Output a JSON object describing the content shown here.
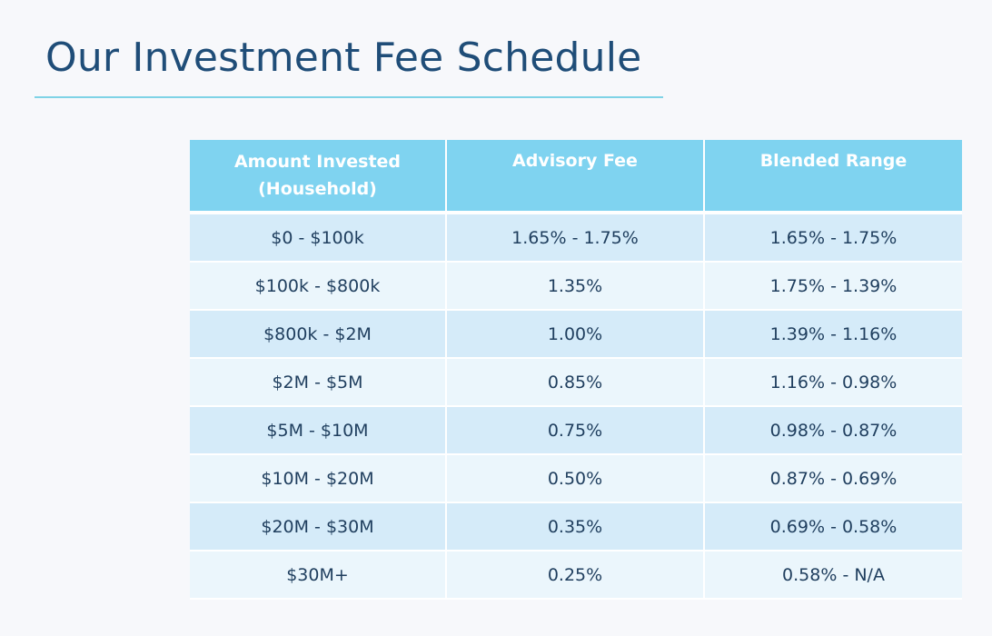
{
  "slide": {
    "title": "Our Investment Fee Schedule"
  },
  "table": {
    "headers": {
      "amount_line1": "Amount Invested",
      "amount_line2": "(Household)",
      "advisory_fee": "Advisory Fee",
      "blended_range": "Blended Range"
    },
    "rows": [
      {
        "amount": "$0 - $100k",
        "fee": "1.65% - 1.75%",
        "blended": "1.65% - 1.75%"
      },
      {
        "amount": "$100k - $800k",
        "fee": "1.35%",
        "blended": "1.75% - 1.39%"
      },
      {
        "amount": "$800k - $2M",
        "fee": "1.00%",
        "blended": "1.39% - 1.16%"
      },
      {
        "amount": "$2M - $5M",
        "fee": "0.85%",
        "blended": "1.16% - 0.98%"
      },
      {
        "amount": "$5M - $10M",
        "fee": "0.75%",
        "blended": "0.98% - 0.87%"
      },
      {
        "amount": "$10M - $20M",
        "fee": "0.50%",
        "blended": "0.87% - 0.69%"
      },
      {
        "amount": "$20M - $30M",
        "fee": "0.35%",
        "blended": "0.69% - 0.58%"
      },
      {
        "amount": "$30M+",
        "fee": "0.25%",
        "blended": "0.58% - N/A"
      }
    ]
  },
  "colors": {
    "title": "#1f4d78",
    "rule": "#7fd3e6",
    "header_bg": "#7fd3f0",
    "row_odd_bg": "#d5ebf9",
    "row_even_bg": "#ebf6fc"
  }
}
